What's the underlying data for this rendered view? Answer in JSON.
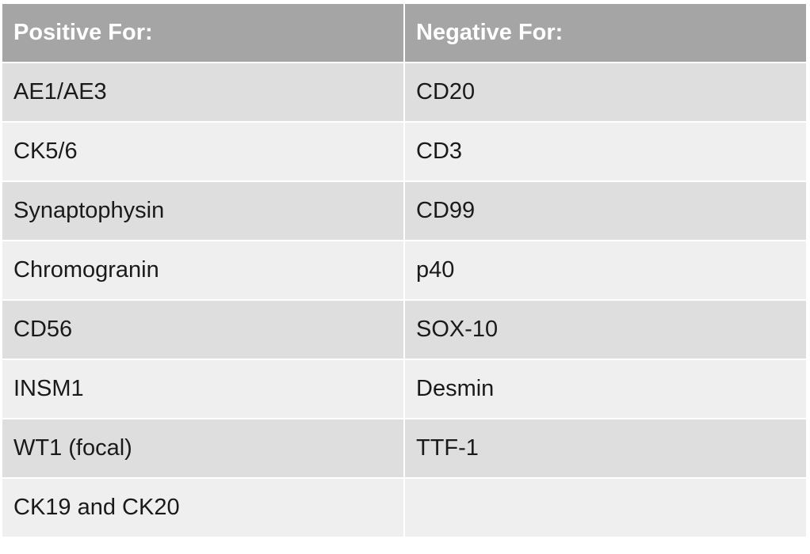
{
  "table": {
    "header": [
      "Positive For:",
      "Negative For:"
    ],
    "rows": [
      [
        "AE1/AE3",
        "CD20"
      ],
      [
        "CK5/6",
        "CD3"
      ],
      [
        "Synaptophysin",
        "CD99"
      ],
      [
        "Chromogranin",
        "p40"
      ],
      [
        "CD56",
        "SOX-10"
      ],
      [
        "INSM1",
        "Desmin"
      ],
      [
        "WT1 (focal)",
        "TTF-1"
      ],
      [
        "CK19 and CK20"
      ]
    ]
  }
}
